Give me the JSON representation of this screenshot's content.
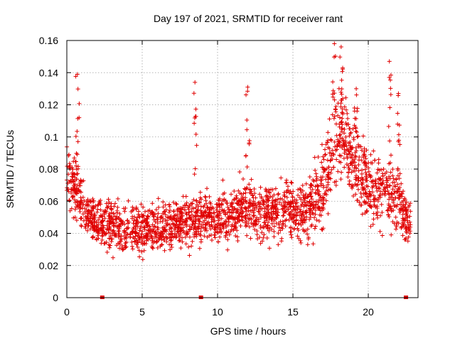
{
  "chart_data": {
    "type": "scatter",
    "title": "Day 197 of 2021, SRMTID for receiver rant",
    "xlabel": "GPS time / hours",
    "ylabel": "SRMTID / TECUs",
    "xlim": [
      0,
      23.3
    ],
    "ylim": [
      0,
      0.16
    ],
    "xticks": [
      0,
      5,
      10,
      15,
      20
    ],
    "xtick_labels": [
      "0",
      "5",
      "10",
      "15",
      "20"
    ],
    "yticks": [
      0,
      0.02,
      0.04,
      0.06,
      0.08,
      0.1,
      0.12,
      0.14,
      0.16
    ],
    "ytick_labels": [
      "0",
      "0.02",
      "0.04",
      "0.06",
      "0.08",
      "0.1",
      "0.12",
      "0.14",
      "0.16"
    ],
    "grid": true,
    "marker": "+",
    "series_color": "#e00000",
    "outage_marker_x": [
      2.35,
      8.9,
      22.5
    ],
    "envelope": {
      "x": [
        0.0,
        0.5,
        1.0,
        1.5,
        2.0,
        3.0,
        4.0,
        5.0,
        6.0,
        7.0,
        8.0,
        9.0,
        10.0,
        11.0,
        12.0,
        13.0,
        14.0,
        15.0,
        16.0,
        17.0,
        17.5,
        18.0,
        18.5,
        19.0,
        20.0,
        21.0,
        22.0,
        22.8
      ],
      "mean": [
        0.078,
        0.07,
        0.058,
        0.05,
        0.047,
        0.045,
        0.043,
        0.043,
        0.044,
        0.045,
        0.048,
        0.05,
        0.051,
        0.053,
        0.057,
        0.052,
        0.053,
        0.055,
        0.055,
        0.067,
        0.09,
        0.1,
        0.098,
        0.085,
        0.07,
        0.065,
        0.06,
        0.045
      ],
      "spread": [
        0.013,
        0.013,
        0.011,
        0.01,
        0.01,
        0.011,
        0.011,
        0.011,
        0.011,
        0.011,
        0.011,
        0.011,
        0.011,
        0.012,
        0.013,
        0.012,
        0.012,
        0.012,
        0.013,
        0.016,
        0.02,
        0.02,
        0.02,
        0.018,
        0.016,
        0.016,
        0.015,
        0.009
      ]
    },
    "spikes": [
      {
        "x": 0.7,
        "ymax": 0.139
      },
      {
        "x": 8.5,
        "ymax": 0.134
      },
      {
        "x": 12.0,
        "ymax": 0.131
      },
      {
        "x": 17.75,
        "ymax": 0.158
      },
      {
        "x": 18.2,
        "ymax": 0.156
      },
      {
        "x": 19.2,
        "ymax": 0.13
      },
      {
        "x": 21.4,
        "ymax": 0.147
      },
      {
        "x": 22.0,
        "ymax": 0.127
      }
    ]
  }
}
